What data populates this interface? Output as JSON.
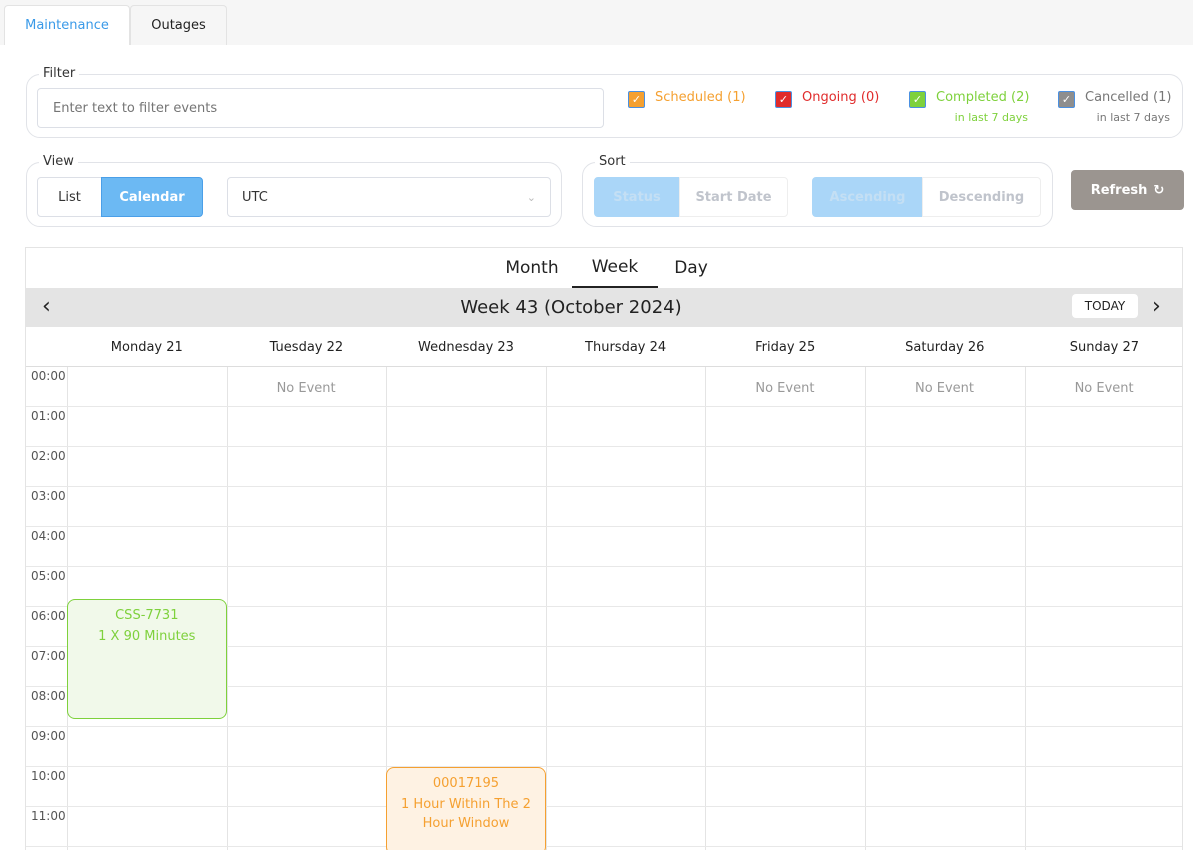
{
  "tabs": [
    {
      "label": "Maintenance",
      "active": true
    },
    {
      "label": "Outages",
      "active": false
    }
  ],
  "filter": {
    "legend": "Filter",
    "placeholder": "Enter text to filter events",
    "value": ""
  },
  "statuses": [
    {
      "label": "Scheduled (1)",
      "color": "#f5a030",
      "checked": true,
      "sub": ""
    },
    {
      "label": "Ongoing (0)",
      "color": "#e02b2b",
      "checked": true,
      "sub": ""
    },
    {
      "label": "Completed (2)",
      "color": "#7ed13c",
      "checked": true,
      "sub": "in last 7 days"
    },
    {
      "label": "Cancelled (1)",
      "color": "#8e8e8e",
      "checked": true,
      "sub": "in last 7 days"
    }
  ],
  "view": {
    "legend": "View",
    "list": "List",
    "calendar": "Calendar",
    "selected": "Calendar",
    "timezone": "UTC"
  },
  "sort": {
    "legend": "Sort",
    "status": "Status",
    "start_date": "Start Date",
    "ascending": "Ascending",
    "descending": "Descending"
  },
  "refresh": "Refresh",
  "calendar": {
    "view_tabs": [
      "Month",
      "Week",
      "Day"
    ],
    "active_view": "Week",
    "title": "Week 43 (October 2024)",
    "today": "TODAY",
    "days": [
      "Monday 21",
      "Tuesday 22",
      "Wednesday 23",
      "Thursday 24",
      "Friday 25",
      "Saturday 26",
      "Sunday 27"
    ],
    "hours": [
      "00:00",
      "01:00",
      "02:00",
      "03:00",
      "04:00",
      "05:00",
      "06:00",
      "07:00",
      "08:00",
      "09:00",
      "10:00",
      "11:00"
    ],
    "no_event": "No Event",
    "no_event_days": [
      1,
      4,
      5,
      6
    ],
    "events": [
      {
        "day": 0,
        "start_hour": 5.8,
        "end_hour": 8.8,
        "id": "CSS-7731",
        "desc": "1 X 90 Minutes",
        "status": "Completed",
        "color": "#7ed13c",
        "bg": "#f1f9ea"
      },
      {
        "day": 2,
        "start_hour": 10,
        "end_hour": 12.2,
        "id": "00017195",
        "desc": "1 Hour Within The 2 Hour Window",
        "status": "Scheduled",
        "color": "#f5a030",
        "bg": "#fef2e3"
      }
    ]
  }
}
